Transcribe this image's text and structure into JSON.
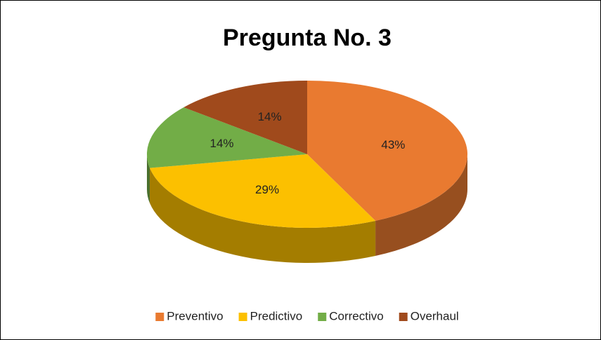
{
  "chart_data": {
    "type": "pie",
    "title": "Pregunta No. 3",
    "categories": [
      "Preventivo",
      "Predictivo",
      "Correctivo",
      "Overhaul"
    ],
    "values": [
      43,
      29,
      14,
      14
    ],
    "value_labels": [
      "43%",
      "29%",
      "14%",
      "14%"
    ],
    "colors": [
      "#e97a30",
      "#fcc000",
      "#72ad47",
      "#a04a1c"
    ],
    "legend": "bottom"
  }
}
